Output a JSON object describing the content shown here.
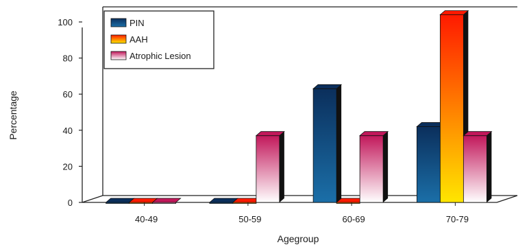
{
  "chart_data": {
    "type": "bar",
    "xlabel": "Agegroup",
    "ylabel": "Percentage",
    "ylim": [
      0,
      100
    ],
    "yticks": [
      0,
      20,
      40,
      60,
      80,
      100
    ],
    "categories": [
      "40-49",
      "50-59",
      "60-69",
      "70-79"
    ],
    "series": [
      {
        "name": "PIN",
        "values": [
          0,
          0,
          63,
          42
        ],
        "colors": [
          "#0b2f5c",
          "#1b6fa8"
        ]
      },
      {
        "name": "AAH",
        "values": [
          0,
          0,
          0,
          104
        ],
        "colors": [
          "#ff1a00",
          "#ffe600"
        ]
      },
      {
        "name": "Atrophic Lesion",
        "values": [
          0,
          37,
          37,
          37
        ],
        "colors": [
          "#c2185b",
          "#ffffff"
        ]
      }
    ],
    "legend": "top-left",
    "grid": false,
    "view": "3d"
  }
}
